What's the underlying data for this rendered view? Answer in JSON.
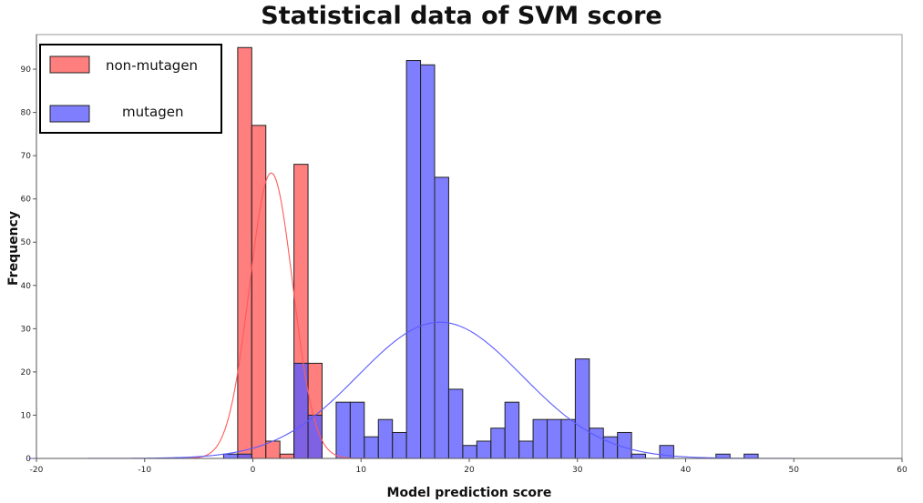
{
  "chart_data": {
    "type": "bar",
    "title": "Statistical data of SVM score",
    "xlabel": "Model prediction score",
    "ylabel": "Frequency",
    "xlim": [
      -20,
      60
    ],
    "ylim": [
      0,
      98
    ],
    "x_ticks": [
      -20,
      -10,
      0,
      10,
      20,
      30,
      40,
      50,
      60
    ],
    "y_ticks": [
      0,
      10,
      20,
      30,
      40,
      50,
      60,
      70,
      80,
      90
    ],
    "grid": false,
    "legend_position": "top-left",
    "bin_width": 1.3,
    "series": [
      {
        "name": "non-mutagen",
        "color": "#ff5a5a",
        "bins": [
          {
            "x": -1.4,
            "value": 95
          },
          {
            "x": -0.1,
            "value": 77
          },
          {
            "x": 1.2,
            "value": 4
          },
          {
            "x": 2.5,
            "value": 1
          },
          {
            "x": 3.8,
            "value": 68
          },
          {
            "x": 5.1,
            "value": 22
          }
        ],
        "fit": {
          "type": "normal",
          "mean": 1.7,
          "sd": 2.0,
          "peak": 66
        }
      },
      {
        "name": "mutagen",
        "color": "#5a5aff",
        "bins": [
          {
            "x": -2.7,
            "value": 1
          },
          {
            "x": -1.4,
            "value": 1
          },
          {
            "x": 3.8,
            "value": 22
          },
          {
            "x": 5.1,
            "value": 10
          },
          {
            "x": 7.7,
            "value": 13
          },
          {
            "x": 9.0,
            "value": 13
          },
          {
            "x": 10.3,
            "value": 5
          },
          {
            "x": 11.6,
            "value": 9
          },
          {
            "x": 12.9,
            "value": 6
          },
          {
            "x": 14.2,
            "value": 92
          },
          {
            "x": 15.5,
            "value": 91
          },
          {
            "x": 16.8,
            "value": 65
          },
          {
            "x": 18.1,
            "value": 16
          },
          {
            "x": 19.4,
            "value": 3
          },
          {
            "x": 20.7,
            "value": 4
          },
          {
            "x": 22.0,
            "value": 7
          },
          {
            "x": 23.3,
            "value": 13
          },
          {
            "x": 24.6,
            "value": 4
          },
          {
            "x": 25.9,
            "value": 9
          },
          {
            "x": 27.2,
            "value": 9
          },
          {
            "x": 28.5,
            "value": 9
          },
          {
            "x": 29.8,
            "value": 23
          },
          {
            "x": 31.1,
            "value": 7
          },
          {
            "x": 32.4,
            "value": 5
          },
          {
            "x": 33.7,
            "value": 6
          },
          {
            "x": 35.0,
            "value": 1
          },
          {
            "x": 37.6,
            "value": 3
          },
          {
            "x": 42.8,
            "value": 1
          },
          {
            "x": 45.4,
            "value": 1
          }
        ],
        "fit": {
          "type": "normal",
          "mean": 17.3,
          "sd": 7.6,
          "peak": 31.5
        }
      }
    ]
  }
}
